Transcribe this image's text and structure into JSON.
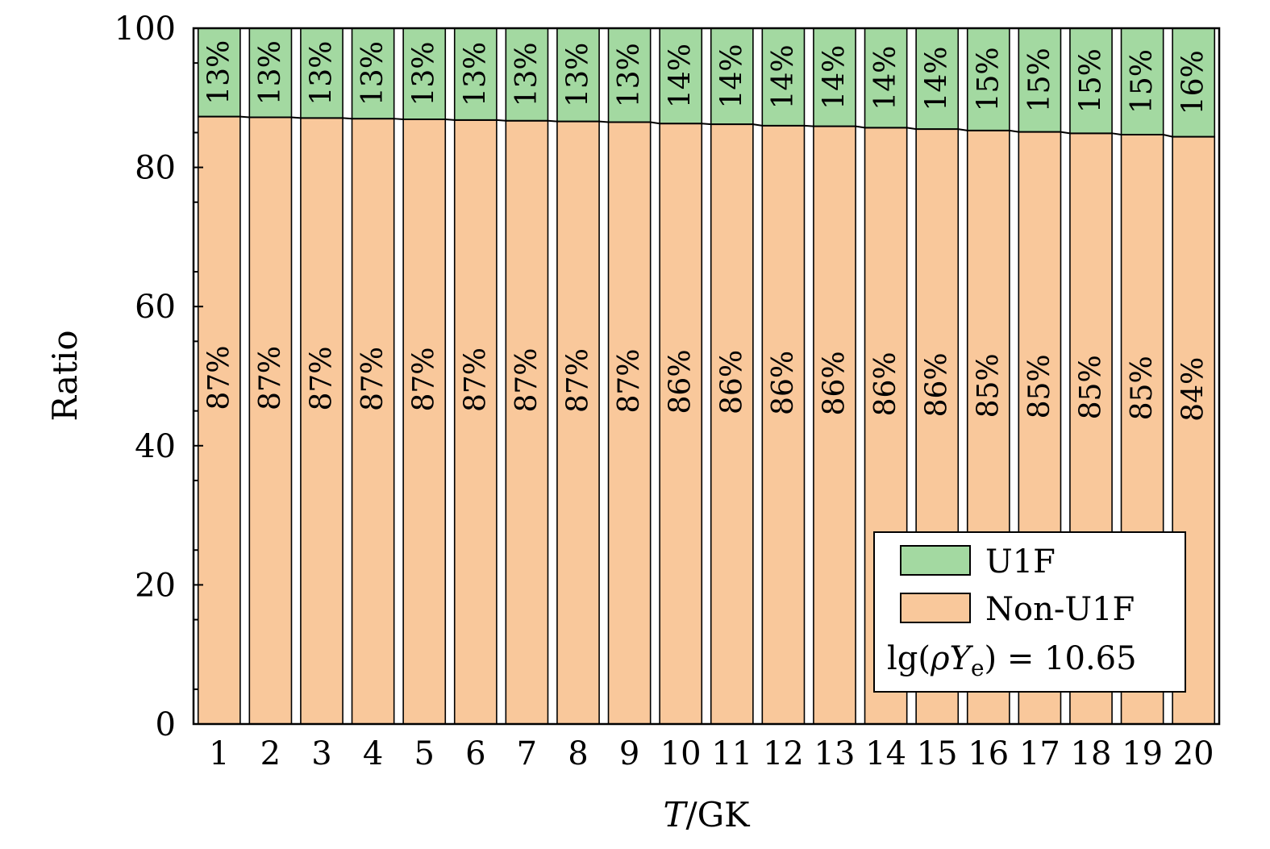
{
  "chart_data": {
    "type": "bar",
    "stacked": true,
    "title": "",
    "xlabel": "T/GK",
    "ylabel": "Ratio",
    "ylim": [
      0,
      100
    ],
    "yticks": [
      0,
      20,
      40,
      60,
      80,
      100
    ],
    "grid": false,
    "legend_position": "bottom-right",
    "categories": [
      "1",
      "2",
      "3",
      "4",
      "5",
      "6",
      "7",
      "8",
      "9",
      "10",
      "11",
      "12",
      "13",
      "14",
      "15",
      "16",
      "17",
      "18",
      "19",
      "20"
    ],
    "series": [
      {
        "name": "Non-U1F",
        "color": "#f9c89b",
        "values": [
          87.3,
          87.2,
          87.1,
          87.0,
          86.9,
          86.8,
          86.7,
          86.6,
          86.5,
          86.3,
          86.2,
          86.0,
          85.9,
          85.7,
          85.5,
          85.3,
          85.1,
          84.9,
          84.7,
          84.4
        ],
        "labels": [
          "87%",
          "87%",
          "87%",
          "87%",
          "87%",
          "87%",
          "87%",
          "87%",
          "87%",
          "86%",
          "86%",
          "86%",
          "86%",
          "86%",
          "86%",
          "85%",
          "85%",
          "85%",
          "85%",
          "84%"
        ]
      },
      {
        "name": "U1F",
        "color": "#a3d9a1",
        "values": [
          12.7,
          12.8,
          12.9,
          13.0,
          13.1,
          13.2,
          13.3,
          13.4,
          13.5,
          13.7,
          13.8,
          14.0,
          14.1,
          14.3,
          14.5,
          14.7,
          14.9,
          15.1,
          15.3,
          15.6
        ],
        "labels": [
          "13%",
          "13%",
          "13%",
          "13%",
          "13%",
          "13%",
          "13%",
          "13%",
          "13%",
          "14%",
          "14%",
          "14%",
          "14%",
          "14%",
          "14%",
          "15%",
          "15%",
          "15%",
          "15%",
          "16%"
        ]
      }
    ],
    "annotation": "lg(ρYe) = 10.65"
  }
}
